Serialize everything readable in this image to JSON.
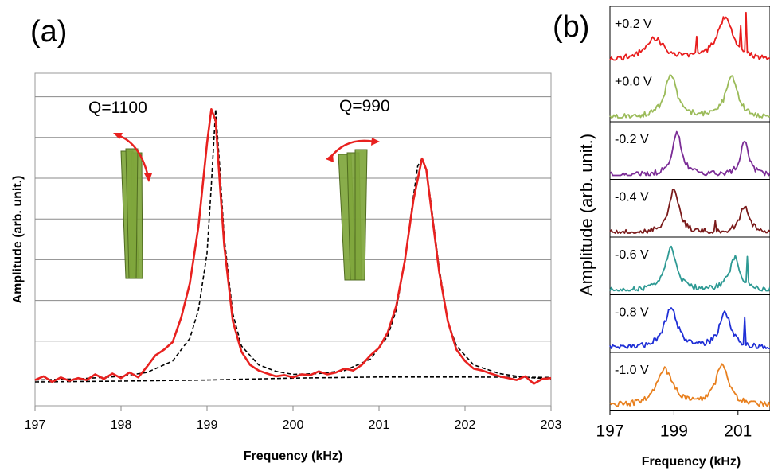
{
  "panel_a": {
    "label": "(a)",
    "chart_data": {
      "type": "line",
      "xlabel": "Frequency (kHz)",
      "ylabel": "Amplitude (arb. unit.)",
      "xlim": [
        197,
        203
      ],
      "x_ticks": [
        "197",
        "198",
        "199",
        "200",
        "201",
        "202",
        "203"
      ],
      "ylim": [
        0,
        8
      ],
      "grid": true,
      "y_tick_labels_shown": false,
      "series": [
        {
          "role": "measured",
          "color": "#e8211f",
          "style": "solid",
          "x": [
            197.0,
            197.1,
            197.2,
            197.3,
            197.4,
            197.5,
            197.6,
            197.7,
            197.8,
            197.9,
            198.0,
            198.1,
            198.2,
            198.3,
            198.4,
            198.5,
            198.6,
            198.7,
            198.8,
            198.9,
            199.0,
            199.05,
            199.1,
            199.15,
            199.2,
            199.3,
            199.4,
            199.5,
            199.6,
            199.7,
            199.8,
            199.9,
            200.0,
            200.1,
            200.2,
            200.3,
            200.4,
            200.5,
            200.6,
            200.7,
            200.8,
            200.9,
            201.0,
            201.1,
            201.2,
            201.3,
            201.4,
            201.5,
            201.55,
            201.6,
            201.7,
            201.8,
            201.9,
            202.0,
            202.1,
            202.2,
            202.3,
            202.4,
            202.5,
            202.6,
            202.7,
            202.8,
            202.9,
            203.0
          ],
          "y": [
            0.05,
            0.15,
            0.0,
            0.12,
            0.03,
            0.1,
            0.05,
            0.2,
            0.08,
            0.22,
            0.1,
            0.25,
            0.12,
            0.4,
            0.7,
            0.85,
            1.05,
            1.7,
            2.6,
            4.1,
            6.3,
            7.2,
            6.9,
            5.2,
            3.6,
            1.6,
            0.8,
            0.45,
            0.3,
            0.22,
            0.15,
            0.18,
            0.12,
            0.2,
            0.18,
            0.28,
            0.2,
            0.25,
            0.35,
            0.3,
            0.45,
            0.7,
            0.9,
            1.3,
            2.0,
            3.2,
            4.8,
            5.9,
            5.6,
            4.7,
            2.9,
            1.6,
            0.85,
            0.55,
            0.35,
            0.3,
            0.22,
            0.15,
            0.1,
            0.05,
            0.15,
            -0.05,
            0.08,
            0.1
          ]
        },
        {
          "role": "fit",
          "color": "#000000",
          "style": "dashed",
          "x": [
            197.0,
            197.5,
            198.0,
            198.3,
            198.6,
            198.8,
            198.9,
            199.0,
            199.05,
            199.1,
            199.15,
            199.2,
            199.3,
            199.4,
            199.6,
            199.8,
            200.0,
            200.3,
            200.6,
            200.9,
            201.1,
            201.2,
            201.3,
            201.4,
            201.45,
            201.5,
            201.55,
            201.6,
            201.7,
            201.8,
            201.9,
            202.1,
            202.4,
            202.7,
            203.0
          ],
          "y": [
            0.05,
            0.08,
            0.15,
            0.25,
            0.55,
            1.15,
            1.9,
            3.4,
            5.2,
            7.2,
            5.6,
            3.8,
            1.8,
            0.95,
            0.45,
            0.28,
            0.2,
            0.22,
            0.3,
            0.6,
            1.2,
            1.9,
            3.2,
            4.9,
            5.7,
            5.9,
            5.6,
            4.8,
            3.0,
            1.6,
            0.95,
            0.45,
            0.22,
            0.12,
            0.08
          ]
        },
        {
          "role": "baseline",
          "color": "#000000",
          "style": "dashed",
          "x": [
            197.0,
            198.0,
            199.0,
            200.0,
            201.0,
            202.0,
            203.0
          ],
          "y": [
            0.0,
            0.02,
            0.05,
            0.1,
            0.13,
            0.13,
            0.12
          ]
        }
      ]
    },
    "annotations": [
      {
        "text": "Q=1100",
        "peak_x": 199.1
      },
      {
        "text": "Q=990",
        "peak_x": 201.5
      }
    ],
    "illustration": {
      "fill": "#7fa63c",
      "stroke": "#4f6b1f",
      "arrow_color": "#e8211f"
    }
  },
  "panel_b": {
    "label": "(b)",
    "chart_data": {
      "type": "line",
      "xlabel": "Frequency (kHz)",
      "ylabel": "Amplitude (arb. unit.)",
      "xlim": [
        197,
        202
      ],
      "x_ticks": [
        "197",
        "199",
        "201"
      ],
      "stacked": true,
      "panels": [
        {
          "label": "+0.2 V",
          "color": "#e81c1c",
          "peaks": [
            198.4,
            200.6
          ],
          "heights": [
            0.45,
            0.9
          ],
          "widths": [
            0.35,
            0.3
          ],
          "spikes": [
            [
              201.25,
              0.9
            ],
            [
              201.1,
              0.5
            ],
            [
              199.7,
              0.35
            ]
          ]
        },
        {
          "label": "+0.0 V",
          "color": "#9bbb59",
          "peaks": [
            198.9,
            200.8
          ],
          "heights": [
            0.95,
            0.9
          ],
          "widths": [
            0.22,
            0.22
          ],
          "spikes": []
        },
        {
          "label": "-0.2 V",
          "color": "#7b2c96",
          "peaks": [
            199.1,
            201.2
          ],
          "heights": [
            0.9,
            0.75
          ],
          "widths": [
            0.18,
            0.15
          ],
          "spikes": []
        },
        {
          "label": "-0.4 V",
          "color": "#7a1a1a",
          "peaks": [
            199.0,
            201.2
          ],
          "heights": [
            0.95,
            0.55
          ],
          "widths": [
            0.18,
            0.18
          ],
          "spikes": [
            [
              200.3,
              0.25
            ]
          ]
        },
        {
          "label": "-0.6 V",
          "color": "#2e9a94",
          "peaks": [
            198.9,
            200.9
          ],
          "heights": [
            0.9,
            0.7
          ],
          "widths": [
            0.2,
            0.2
          ],
          "spikes": [
            [
              201.3,
              0.55
            ]
          ]
        },
        {
          "label": "-0.8 V",
          "color": "#1f2fd6",
          "peaks": [
            198.9,
            200.6
          ],
          "heights": [
            0.85,
            0.75
          ],
          "widths": [
            0.25,
            0.22
          ],
          "spikes": [
            [
              201.2,
              0.6
            ]
          ]
        },
        {
          "label": "-1.0 V",
          "color": "#e8801f",
          "peaks": [
            198.7,
            200.5
          ],
          "heights": [
            0.8,
            0.85
          ],
          "widths": [
            0.3,
            0.25
          ],
          "spikes": []
        }
      ]
    }
  }
}
